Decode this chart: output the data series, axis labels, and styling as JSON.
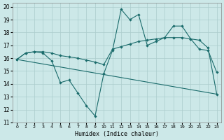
{
  "xlabel": "Humidex (Indice chaleur)",
  "background_color": "#cce8e8",
  "grid_color": "#aacccc",
  "line_color": "#1a6b6b",
  "xlim": [
    -0.5,
    23.5
  ],
  "ylim": [
    11,
    20.3
  ],
  "yticks": [
    11,
    12,
    13,
    14,
    15,
    16,
    17,
    18,
    19,
    20
  ],
  "xtick_labels": [
    "0",
    "1",
    "2",
    "3",
    "4",
    "5",
    "6",
    "7",
    "8",
    "9",
    "10",
    "11",
    "12",
    "13",
    "14",
    "15",
    "16",
    "17",
    "18",
    "19",
    "20",
    "21",
    "22",
    "23"
  ],
  "line1_x": [
    0,
    1,
    2,
    3,
    4,
    5,
    6,
    7,
    8,
    9,
    10,
    11,
    12,
    13,
    14,
    15,
    16,
    17,
    18,
    19,
    20,
    21,
    22,
    23
  ],
  "line1_y": [
    15.9,
    16.4,
    16.5,
    16.4,
    15.8,
    14.1,
    14.3,
    13.3,
    12.3,
    11.5,
    14.8,
    16.6,
    19.8,
    19.0,
    19.4,
    17.0,
    17.3,
    17.6,
    18.5,
    18.5,
    17.5,
    16.7,
    16.6,
    14.9
  ],
  "line2_x": [
    0,
    1,
    2,
    3,
    4,
    5,
    6,
    7,
    8,
    9,
    10,
    11,
    12,
    13,
    14,
    15,
    16,
    17,
    18,
    19,
    20,
    21,
    22,
    23
  ],
  "line2_y": [
    15.9,
    16.4,
    16.5,
    16.5,
    16.4,
    16.2,
    16.1,
    16.0,
    15.85,
    15.7,
    15.5,
    16.7,
    16.9,
    17.1,
    17.3,
    17.4,
    17.5,
    17.6,
    17.6,
    17.6,
    17.5,
    17.4,
    16.8,
    13.2
  ],
  "line3_x": [
    0,
    23
  ],
  "line3_y": [
    15.9,
    13.2
  ]
}
